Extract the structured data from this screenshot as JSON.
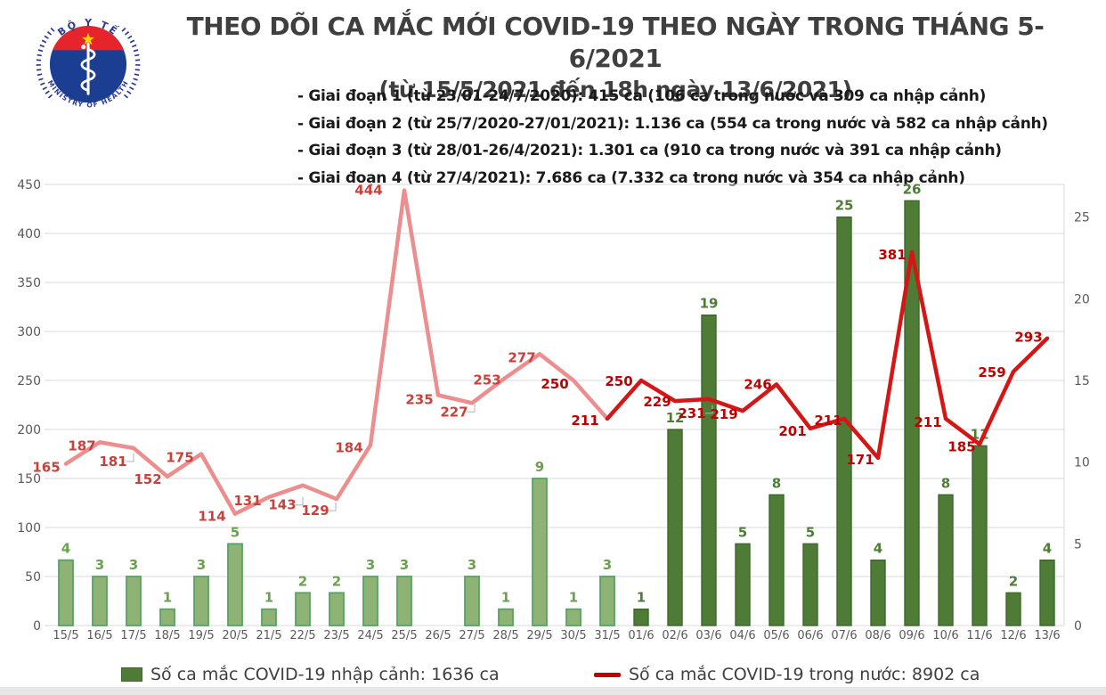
{
  "logo": {
    "top_text": "BỘ Y TẾ",
    "bottom_text": "MINISTRY OF HEALTH",
    "colors": {
      "blue": "#1b3e92",
      "ring_blue": "#2b3990",
      "red": "#e5242b",
      "star_yellow": "#ffd400"
    }
  },
  "title": {
    "line1": "THEO DÕI CA MẮC MỚI COVID-19 THEO NGÀY TRONG THÁNG 5-6/2021",
    "line2": "(từ 15/5/2021 đến 18h ngày 13/6/2021)"
  },
  "periods": [
    "- Giai đoạn 1 (từ 23/01-24/7/2020): 415 ca (106 ca trong nước và 309 ca nhập cảnh)",
    "- Giai đoạn 2 (từ 25/7/2020-27/01/2021): 1.136 ca (554 ca trong nước và 582 ca nhập cảnh)",
    "- Giai đoạn 3 (từ 28/01-26/4/2021): 1.301 ca (910 ca trong nước và 391 ca nhập cảnh)",
    "- Giai đoạn 4 (từ 27/4/2021): 7.686 ca (7.332 ca trong nước và 354 ca nhập cảnh)"
  ],
  "legend": [
    {
      "type": "bar",
      "label": "Số ca mắc COVID-19 nhập cảnh: 1636 ca"
    },
    {
      "type": "line",
      "label": "Số ca mắc COVID-19 trong nước: 8902 ca"
    }
  ],
  "chart_data": {
    "type": "combo-bar-line",
    "title": "THEO DÕI CA MẮC MỚI COVID-19 THEO NGÀY TRONG THÁNG 5-6/2021",
    "categories": [
      "15/5",
      "16/5",
      "17/5",
      "18/5",
      "19/5",
      "20/5",
      "21/5",
      "22/5",
      "23/5",
      "24/5",
      "25/5",
      "26/5",
      "27/5",
      "28/5",
      "29/5",
      "30/5",
      "31/5",
      "01/6",
      "02/6",
      "03/6",
      "04/6",
      "05/6",
      "06/6",
      "07/6",
      "08/6",
      "09/6",
      "10/6",
      "11/6",
      "12/6",
      "13/6"
    ],
    "series": [
      {
        "name": "Số ca mắc COVID-19 nhập cảnh",
        "type": "bar",
        "axis": "right",
        "total": "1636 ca",
        "values": [
          4,
          3,
          3,
          1,
          3,
          5,
          1,
          2,
          2,
          3,
          3,
          0,
          3,
          1,
          9,
          1,
          3,
          1,
          12,
          19,
          5,
          8,
          5,
          25,
          4,
          26,
          8,
          11,
          2,
          4
        ]
      },
      {
        "name": "Số ca mắc COVID-19 trong nước",
        "type": "line",
        "axis": "left",
        "total": "8902 ca",
        "values": [
          165,
          187,
          181,
          152,
          175,
          114,
          131,
          143,
          129,
          184,
          444,
          235,
          227,
          253,
          277,
          250,
          211,
          250,
          229,
          231,
          219,
          246,
          201,
          211,
          171,
          381,
          211,
          185,
          259,
          293
        ]
      }
    ],
    "left_axis": {
      "min": 0,
      "max": 450,
      "step": 50,
      "ticks": [
        0,
        50,
        100,
        150,
        200,
        250,
        300,
        350,
        400,
        450
      ]
    },
    "right_axis": {
      "min": 0,
      "max": 27,
      "ticks": [
        0,
        5,
        10,
        15,
        20,
        25
      ]
    },
    "grid": "horizontal",
    "legend_position": "bottom",
    "style_change_at": "01/6",
    "colors": {
      "bar_may_fill": "#8fb374",
      "bar_may_stroke": "#57a266",
      "bar_june_fill": "#4e7c36",
      "bar_june_stroke": "#3e672b",
      "line_may": "#ec8e8e",
      "line_june": "#d41616",
      "line_label_may": "#c8413d",
      "line_label_june": "#c00000",
      "bar_label_may": "#6ba14e",
      "bar_label_june": "#4e7c36",
      "axis_text": "#595959",
      "grid": "#d9d9d9"
    }
  }
}
